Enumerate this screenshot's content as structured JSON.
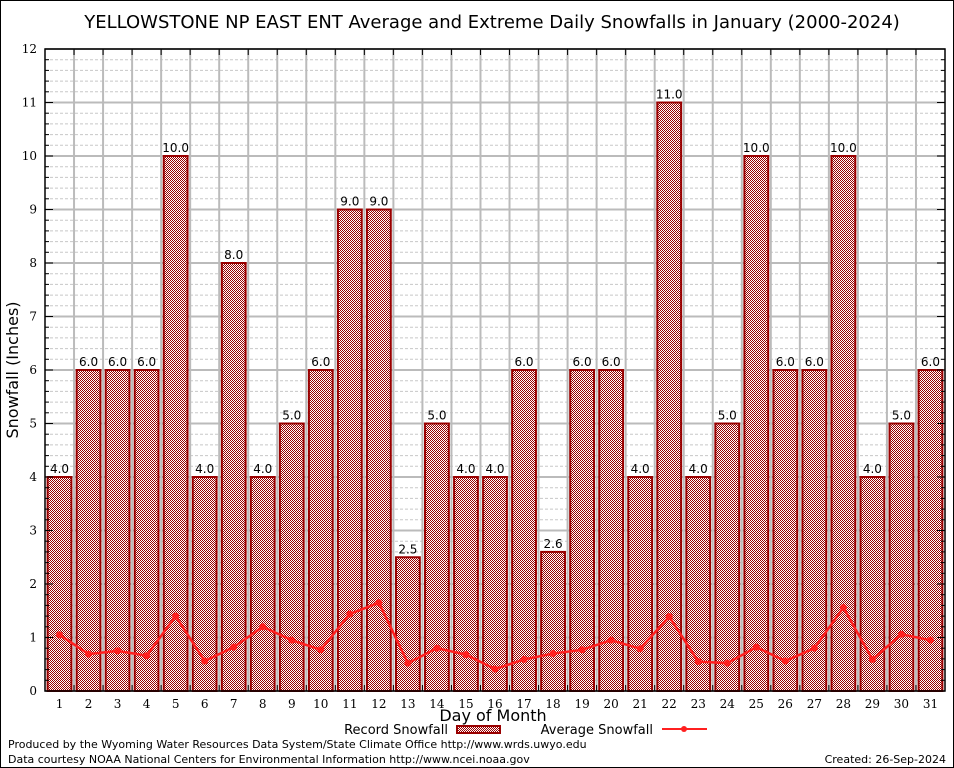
{
  "chart_data": {
    "type": "bar",
    "title": "YELLOWSTONE NP EAST ENT Average and Extreme Daily Snowfalls in January (2000-2024)",
    "xlabel": "Day of Month",
    "ylabel": "Snowfall (Inches)",
    "ylim": [
      0,
      12
    ],
    "yticks": [
      0,
      1,
      2,
      3,
      4,
      5,
      6,
      7,
      8,
      9,
      10,
      11,
      12
    ],
    "grid": true,
    "legend_position": "bottom",
    "categories": [
      "1",
      "2",
      "3",
      "4",
      "5",
      "6",
      "7",
      "8",
      "9",
      "10",
      "11",
      "12",
      "13",
      "14",
      "15",
      "16",
      "17",
      "18",
      "19",
      "20",
      "21",
      "22",
      "23",
      "24",
      "25",
      "26",
      "27",
      "28",
      "29",
      "30",
      "31"
    ],
    "series": [
      {
        "name": "Record Snowfall",
        "type": "bar",
        "color": "#990000",
        "values": [
          4.0,
          6.0,
          6.0,
          6.0,
          10.0,
          4.0,
          8.0,
          4.0,
          5.0,
          6.0,
          9.0,
          9.0,
          2.5,
          5.0,
          4.0,
          4.0,
          6.0,
          2.6,
          6.0,
          6.0,
          4.0,
          11.0,
          4.0,
          5.0,
          10.0,
          6.0,
          6.0,
          10.0,
          4.0,
          5.0,
          6.0
        ],
        "labels": [
          "4.0",
          "6.0",
          "6.0",
          "6.0",
          "10.0",
          "4.0",
          "8.0",
          "4.0",
          "5.0",
          "6.0",
          "9.0",
          "9.0",
          "2.5",
          "5.0",
          "4.0",
          "4.0",
          "6.0",
          "2.6",
          "6.0",
          "6.0",
          "4.0",
          "11.0",
          "4.0",
          "5.0",
          "10.0",
          "6.0",
          "6.0",
          "10.0",
          "4.0",
          "5.0",
          "6.0"
        ]
      },
      {
        "name": "Average Snowfall",
        "type": "line",
        "color": "#ff2020",
        "values": [
          1.05,
          0.69,
          0.75,
          0.66,
          1.4,
          0.56,
          0.82,
          1.2,
          0.95,
          0.77,
          1.44,
          1.65,
          0.52,
          0.8,
          0.68,
          0.41,
          0.59,
          0.7,
          0.77,
          0.95,
          0.79,
          1.39,
          0.55,
          0.52,
          0.82,
          0.56,
          0.8,
          1.56,
          0.59,
          1.06,
          0.95
        ]
      }
    ]
  },
  "footer": {
    "line1": "Produced by the Wyoming Water Resources Data System/State Climate Office http://www.wrds.uwyo.edu",
    "line2": "Data courtesy NOAA National Centers for Environmental Information http://www.ncei.noaa.gov",
    "created": "Created: 26-Sep-2024"
  }
}
